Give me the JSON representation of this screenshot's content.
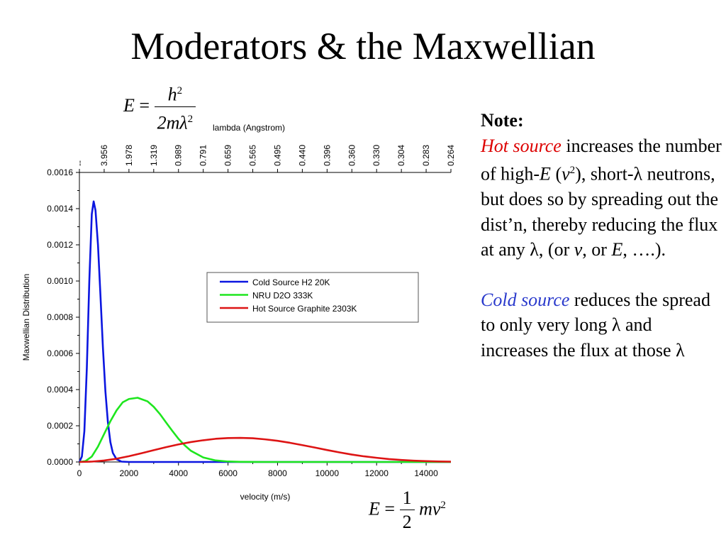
{
  "slide": {
    "title": "Moderators & the Maxwellian"
  },
  "equations": {
    "top": {
      "lhs": "E",
      "eq": "=",
      "num": "h",
      "num_exp": "2",
      "den": "2mλ",
      "den_exp": "2"
    },
    "bottom": {
      "lhs": "E",
      "eq": "=",
      "num": "1",
      "den": "2",
      "tail": "mv",
      "tail_exp": "2"
    }
  },
  "note": {
    "heading": "Note:",
    "para1": {
      "hot": "Hot source",
      "t1": " increases the number of high-",
      "E": "E",
      "t2": " (",
      "v": "v",
      "v_exp": "2",
      "t3": "), short-λ neutrons, but does so by spreading out the dist’n, thereby reducing the flux at any λ, (or ",
      "v2": "v",
      "t4": ", or ",
      "E2": "E",
      "t5": ",  ….)."
    },
    "para2": {
      "cold": "Cold source",
      "t1": " reduces the spread to only very long λ and increases the flux at those λ"
    }
  },
  "chart_data": {
    "type": "line",
    "title": "",
    "xlabel": "velocity (m/s)",
    "ylabel": "Maxwellian Distribution",
    "top_axis_label": "lambda (Angstrom)",
    "xlim": [
      0,
      15000
    ],
    "ylim": [
      0,
      0.0016
    ],
    "x_ticks": [
      0,
      2000,
      4000,
      6000,
      8000,
      10000,
      12000,
      14000
    ],
    "y_ticks": [
      0.0,
      0.0002,
      0.0004,
      0.0006,
      0.0008,
      0.001,
      0.0012,
      0.0014,
      0.0016
    ],
    "y_tick_labels": [
      "0.0000",
      "0.0002",
      "0.0004",
      "0.0006",
      "0.0008",
      "0.0010",
      "0.0012",
      "0.0014",
      "0.0016"
    ],
    "top_ticks": [
      {
        "v": 0,
        "label": "--"
      },
      {
        "v": 1000,
        "label": "3.956"
      },
      {
        "v": 2000,
        "label": "1.978"
      },
      {
        "v": 3000,
        "label": "1.319"
      },
      {
        "v": 4000,
        "label": "0.989"
      },
      {
        "v": 5000,
        "label": "0.791"
      },
      {
        "v": 6000,
        "label": "0.659"
      },
      {
        "v": 7000,
        "label": "0.565"
      },
      {
        "v": 8000,
        "label": "0.495"
      },
      {
        "v": 9000,
        "label": "0.440"
      },
      {
        "v": 10000,
        "label": "0.396"
      },
      {
        "v": 11000,
        "label": "0.360"
      },
      {
        "v": 12000,
        "label": "0.330"
      },
      {
        "v": 13000,
        "label": "0.304"
      },
      {
        "v": 14000,
        "label": "0.283"
      },
      {
        "v": 15000,
        "label": "0.264"
      }
    ],
    "legend_position": "center-right",
    "series": [
      {
        "name": "Cold Source H2 20K",
        "color": "#0b16e0",
        "x": [
          0,
          100,
          200,
          300,
          400,
          500,
          575,
          650,
          750,
          850,
          950,
          1050,
          1150,
          1250,
          1350,
          1500,
          1700,
          2000,
          2500,
          15000
        ],
        "y": [
          0,
          3e-05,
          0.00017,
          0.00052,
          0.001,
          0.00137,
          0.00144,
          0.00139,
          0.0012,
          0.00092,
          0.00063,
          0.00039,
          0.00022,
          0.00011,
          5e-05,
          1.5e-05,
          2e-06,
          0,
          0,
          0
        ]
      },
      {
        "name": "NRU D2O 333K",
        "color": "#1ee61e",
        "x": [
          0,
          250,
          500,
          750,
          1000,
          1250,
          1500,
          1750,
          2000,
          2350,
          2750,
          3000,
          3250,
          3500,
          3750,
          4000,
          4250,
          4500,
          5000,
          5500,
          6000,
          6500,
          7000,
          7500,
          8000,
          15000
        ],
        "y": [
          0,
          5e-06,
          3e-05,
          8.5e-05,
          0.000155,
          0.000225,
          0.000285,
          0.00033,
          0.000348,
          0.000355,
          0.000335,
          0.000305,
          0.000265,
          0.000218,
          0.000172,
          0.000128,
          9.2e-05,
          6.2e-05,
          2.5e-05,
          8.5e-06,
          2.5e-06,
          6e-07,
          1e-07,
          0,
          0,
          0
        ]
      },
      {
        "name": "Hot Source Graphite 2303K",
        "color": "#dd1414",
        "x": [
          0,
          500,
          1000,
          1500,
          2000,
          2500,
          3000,
          3500,
          4000,
          4500,
          5000,
          5500,
          6000,
          6500,
          7000,
          7500,
          8000,
          8500,
          9000,
          9500,
          10000,
          10500,
          11000,
          11500,
          12000,
          12500,
          13000,
          13500,
          14000,
          14500,
          15000
        ],
        "y": [
          0,
          2e-06,
          8e-06,
          1.8e-05,
          3.2e-05,
          4.8e-05,
          6.5e-05,
          8.2e-05,
          9.7e-05,
          0.00011,
          0.00012,
          0.000128,
          0.000132,
          0.000133,
          0.000131,
          0.000125,
          0.000117,
          0.000106,
          9.3e-05,
          8e-05,
          6.6e-05,
          5.3e-05,
          4.1e-05,
          3.1e-05,
          2.3e-05,
          1.6e-05,
          1.1e-05,
          7.2e-06,
          4.6e-06,
          2.8e-06,
          1.7e-06
        ]
      }
    ]
  }
}
